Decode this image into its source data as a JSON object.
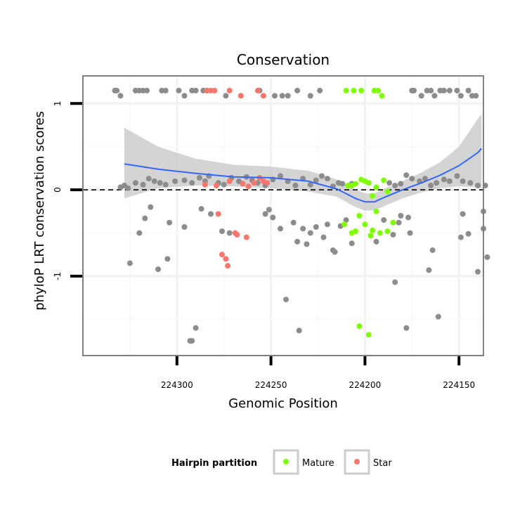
{
  "chart_data": {
    "type": "scatter",
    "title": "Conservation",
    "xlabel": "Genomic Position",
    "ylabel": "phyloP LRT conservation scores",
    "x_reversed": true,
    "xlim": [
      224137,
      224350
    ],
    "ylim": [
      -1.92,
      1.32
    ],
    "x_ticks": [
      224300,
      224250,
      224200,
      224150
    ],
    "y_ticks": [
      1,
      0,
      -1
    ],
    "reference_line": {
      "y": 0,
      "style": "dashed",
      "color": "#000000"
    },
    "grid": true,
    "colors": {
      "background": "#ffffff",
      "panel_border": "#7f7f7f",
      "grid_major": "#f2f2f2",
      "grid_minor": "#f9f9f9",
      "none": "#8c8c8c",
      "Mature": "#7fff00",
      "Star": "#f8766d",
      "smooth_line": "#3366ff",
      "ribbon": "#c9c9c9"
    },
    "legend": {
      "title": "Hairpin partition",
      "position": "bottom",
      "entries": [
        {
          "label": "Mature",
          "color": "#7fff00"
        },
        {
          "label": "Star",
          "color": "#f8766d"
        }
      ]
    },
    "series": [
      {
        "name": "none",
        "points": [
          [
            224333,
            1.15
          ],
          [
            224332,
            1.15
          ],
          [
            224330,
            1.09
          ],
          [
            224322,
            1.15
          ],
          [
            224320,
            1.15
          ],
          [
            224318,
            1.15
          ],
          [
            224316,
            1.15
          ],
          [
            224308,
            1.15
          ],
          [
            224306,
            1.15
          ],
          [
            224299,
            1.15
          ],
          [
            224296,
            1.09
          ],
          [
            224292,
            1.15
          ],
          [
            224290,
            1.15
          ],
          [
            224286,
            1.15
          ],
          [
            224284,
            1.15
          ],
          [
            224274,
            1.09
          ],
          [
            224256,
            1.15
          ],
          [
            224248,
            1.09
          ],
          [
            224244,
            1.09
          ],
          [
            224241,
            1.09
          ],
          [
            224236,
            1.15
          ],
          [
            224229,
            1.09
          ],
          [
            224224,
            1.15
          ],
          [
            224175,
            1.15
          ],
          [
            224174,
            1.15
          ],
          [
            224170,
            1.09
          ],
          [
            224167,
            1.15
          ],
          [
            224165,
            1.15
          ],
          [
            224163,
            1.09
          ],
          [
            224160,
            1.15
          ],
          [
            224158,
            1.15
          ],
          [
            224155,
            1.15
          ],
          [
            224151,
            1.15
          ],
          [
            224149,
            1.09
          ],
          [
            224145,
            1.15
          ],
          [
            224143,
            1.09
          ],
          [
            224141,
            1.09
          ],
          [
            224330,
            0.03
          ],
          [
            224328,
            0.05
          ],
          [
            224326,
            0.02
          ],
          [
            224322,
            0.08
          ],
          [
            224318,
            0.06
          ],
          [
            224315,
            0.13
          ],
          [
            224312,
            0.1
          ],
          [
            224309,
            0.08
          ],
          [
            224306,
            0.06
          ],
          [
            224301,
            0.1
          ],
          [
            224296,
            0.11
          ],
          [
            224292,
            0.08
          ],
          [
            224288,
            0.14
          ],
          [
            224285,
            0.1
          ],
          [
            224283,
            0.16
          ],
          [
            224278,
            0.08
          ],
          [
            224275,
            0.06
          ],
          [
            224271,
            0.14
          ],
          [
            224267,
            0.1
          ],
          [
            224263,
            0.15
          ],
          [
            224260,
            0.11
          ],
          [
            224257,
            0.08
          ],
          [
            224253,
            0.05
          ],
          [
            224249,
            0.12
          ],
          [
            224245,
            0.16
          ],
          [
            224241,
            0.1
          ],
          [
            224237,
            0.05
          ],
          [
            224233,
            0.13
          ],
          [
            224229,
            0.06
          ],
          [
            224226,
            0.11
          ],
          [
            224223,
            0.16
          ],
          [
            224220,
            0.13
          ],
          [
            224217,
            0.04
          ],
          [
            224214,
            0.08
          ],
          [
            224212,
            0.07
          ],
          [
            224207,
            0.07
          ],
          [
            224187,
            0.08
          ],
          [
            224184,
            0.05
          ],
          [
            224181,
            0.07
          ],
          [
            224178,
            0.17
          ],
          [
            224175,
            0.13
          ],
          [
            224171,
            0.1
          ],
          [
            224168,
            0.13
          ],
          [
            224165,
            0.05
          ],
          [
            224162,
            0.08
          ],
          [
            224158,
            0.12
          ],
          [
            224155,
            0.1
          ],
          [
            224151,
            0.16
          ],
          [
            224148,
            0.1
          ],
          [
            224144,
            0.08
          ],
          [
            224140,
            0.05
          ],
          [
            224325,
            -0.85
          ],
          [
            224320,
            -0.5
          ],
          [
            224317,
            -0.33
          ],
          [
            224314,
            -0.2
          ],
          [
            224310,
            -0.92
          ],
          [
            224305,
            -0.8
          ],
          [
            224304,
            -0.38
          ],
          [
            224296,
            -0.43
          ],
          [
            224292,
            -1.75
          ],
          [
            224293,
            -1.75
          ],
          [
            224290,
            -1.6
          ],
          [
            224287,
            -0.22
          ],
          [
            224282,
            -0.28
          ],
          [
            224276,
            -0.48
          ],
          [
            224272,
            -0.5
          ],
          [
            224253,
            -0.28
          ],
          [
            224251,
            -0.23
          ],
          [
            224249,
            -0.32
          ],
          [
            224245,
            -0.45
          ],
          [
            224242,
            -1.27
          ],
          [
            224238,
            -0.38
          ],
          [
            224236,
            -0.6
          ],
          [
            224233,
            -0.45
          ],
          [
            224235,
            -1.63
          ],
          [
            224231,
            -0.63
          ],
          [
            224229,
            -0.5
          ],
          [
            224226,
            -0.43
          ],
          [
            224222,
            -0.55
          ],
          [
            224220,
            -0.4
          ],
          [
            224217,
            -0.7
          ],
          [
            224216,
            -0.72
          ],
          [
            224213,
            -0.42
          ],
          [
            224210,
            -0.35
          ],
          [
            224207,
            -0.62
          ],
          [
            224194,
            -0.6
          ],
          [
            224190,
            -0.35
          ],
          [
            224185,
            -0.52
          ],
          [
            224184,
            -1.07
          ],
          [
            224182,
            -0.38
          ],
          [
            224181,
            -0.3
          ],
          [
            224178,
            -1.6
          ],
          [
            224177,
            -0.32
          ],
          [
            224176,
            -0.5
          ],
          [
            224166,
            -0.93
          ],
          [
            224164,
            -0.7
          ],
          [
            224161,
            -1.47
          ],
          [
            224149,
            -0.55
          ],
          [
            224148,
            -0.28
          ],
          [
            224145,
            -0.51
          ],
          [
            224140,
            -0.95
          ],
          [
            224137,
            -0.45
          ],
          [
            224137,
            -0.25
          ],
          [
            224135,
            -0.78
          ],
          [
            224136,
            0.05
          ]
        ]
      },
      {
        "name": "Mature",
        "points": [
          [
            224210,
            1.15
          ],
          [
            224206,
            1.15
          ],
          [
            224202,
            1.15
          ],
          [
            224195,
            1.15
          ],
          [
            224193,
            1.15
          ],
          [
            224191,
            1.09
          ],
          [
            224209,
            0.05
          ],
          [
            224207,
            0.05
          ],
          [
            224205,
            0.07
          ],
          [
            224202,
            0.12
          ],
          [
            224200,
            0.1
          ],
          [
            224198,
            0.08
          ],
          [
            224196,
            -0.07
          ],
          [
            224194,
            0.03
          ],
          [
            224190,
            0.11
          ],
          [
            224188,
            -0.02
          ],
          [
            224211,
            -0.4
          ],
          [
            224207,
            -0.5
          ],
          [
            224205,
            -0.48
          ],
          [
            224203,
            -0.3
          ],
          [
            224200,
            -0.4
          ],
          [
            224197,
            -0.53
          ],
          [
            224196,
            -0.47
          ],
          [
            224194,
            -0.25
          ],
          [
            224192,
            -0.5
          ],
          [
            224188,
            -0.48
          ],
          [
            224185,
            -0.38
          ],
          [
            224203,
            -1.58
          ],
          [
            224198,
            -1.68
          ]
        ]
      },
      {
        "name": "Star",
        "points": [
          [
            224284,
            1.15
          ],
          [
            224282,
            1.15
          ],
          [
            224280,
            1.15
          ],
          [
            224272,
            1.15
          ],
          [
            224266,
            1.09
          ],
          [
            224257,
            1.15
          ],
          [
            224254,
            1.09
          ],
          [
            224285,
            0.06
          ],
          [
            224279,
            0.05
          ],
          [
            224272,
            0.1
          ],
          [
            224265,
            0.07
          ],
          [
            224262,
            0.04
          ],
          [
            224259,
            0.08
          ],
          [
            224256,
            0.14
          ],
          [
            224254,
            0.1
          ],
          [
            224252,
            0.08
          ],
          [
            224278,
            -0.28
          ],
          [
            224276,
            -0.75
          ],
          [
            224274,
            -0.8
          ],
          [
            224273,
            -0.88
          ],
          [
            224269,
            -0.5
          ],
          [
            224268,
            -0.52
          ],
          [
            224263,
            -0.55
          ]
        ]
      }
    ],
    "smooth": {
      "method": "loess",
      "x": [
        224328,
        224310,
        224290,
        224270,
        224250,
        224230,
        224215,
        224205,
        224200,
        224195,
        224190,
        224180,
        224170,
        224160,
        224150,
        224140,
        224138
      ],
      "y": [
        0.3,
        0.24,
        0.19,
        0.15,
        0.14,
        0.1,
        0.01,
        -0.1,
        -0.14,
        -0.14,
        -0.09,
        0.0,
        0.08,
        0.17,
        0.28,
        0.43,
        0.48
      ],
      "se_lower": [
        -0.1,
        0.02,
        0.05,
        0.04,
        0.02,
        -0.02,
        -0.08,
        -0.2,
        -0.24,
        -0.24,
        -0.19,
        -0.1,
        -0.03,
        0.02,
        0.04,
        0.03,
        0.02
      ],
      "se_upper": [
        0.72,
        0.5,
        0.36,
        0.29,
        0.27,
        0.22,
        0.12,
        0.0,
        -0.04,
        -0.04,
        0.01,
        0.1,
        0.2,
        0.32,
        0.5,
        0.82,
        0.88
      ]
    }
  }
}
